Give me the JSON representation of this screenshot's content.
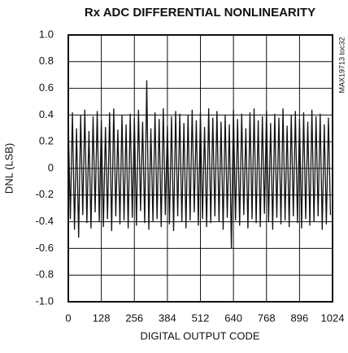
{
  "chart_data": {
    "type": "line",
    "title": "Rx ADC DIFFERENTIAL NONLINEARITY",
    "x_label": "DIGITAL OUTPUT CODE",
    "y_label": "DNL (LSB)",
    "note": "MAX19713 toc32",
    "color": "#111111",
    "grid": true,
    "xlim": [
      0,
      1024
    ],
    "xticks": [
      0,
      128,
      256,
      384,
      512,
      640,
      768,
      896,
      1024
    ],
    "ylim": [
      -1,
      1
    ],
    "yticks": [
      {
        "value": -1,
        "label": "-1.0"
      },
      -0.8,
      -0.6,
      -0.4,
      -0.2,
      0,
      0.2,
      0.4,
      0.6,
      0.8,
      {
        "value": 1,
        "label": "1.0"
      }
    ],
    "x": [
      0,
      8,
      16,
      24,
      32,
      40,
      48,
      56,
      64,
      72,
      80,
      88,
      96,
      104,
      112,
      120,
      128,
      136,
      144,
      152,
      160,
      168,
      176,
      184,
      192,
      200,
      208,
      216,
      224,
      232,
      240,
      248,
      256,
      264,
      272,
      280,
      288,
      296,
      304,
      312,
      320,
      328,
      336,
      344,
      352,
      360,
      368,
      376,
      384,
      392,
      400,
      408,
      416,
      424,
      432,
      440,
      448,
      456,
      464,
      472,
      480,
      488,
      496,
      504,
      512,
      520,
      528,
      536,
      544,
      552,
      560,
      568,
      576,
      584,
      592,
      600,
      608,
      616,
      624,
      632,
      640,
      648,
      656,
      664,
      672,
      680,
      688,
      696,
      704,
      712,
      720,
      728,
      736,
      744,
      752,
      760,
      768,
      776,
      784,
      792,
      800,
      808,
      816,
      824,
      832,
      840,
      848,
      856,
      864,
      872,
      880,
      888,
      896,
      904,
      912,
      920,
      928,
      936,
      944,
      952,
      960,
      968,
      976,
      984,
      992,
      1000,
      1008,
      1016
    ],
    "values": [
      0.35,
      -0.38,
      0.42,
      -0.46,
      0.3,
      -0.52,
      0.4,
      -0.35,
      0.44,
      -0.41,
      0.28,
      -0.45,
      0.39,
      -0.33,
      0.43,
      -0.4,
      0.36,
      -0.44,
      0.31,
      -0.38,
      0.42,
      -0.47,
      0.45,
      -0.36,
      0.29,
      -0.42,
      0.4,
      -0.39,
      0.33,
      -0.45,
      0.41,
      -0.37,
      0.38,
      -0.43,
      0.44,
      -0.32,
      0.35,
      -0.41,
      0.66,
      -0.46,
      0.3,
      -0.4,
      0.42,
      -0.38,
      0.37,
      -0.44,
      0.45,
      -0.35,
      0.32,
      -0.42,
      0.39,
      -0.47,
      0.43,
      -0.36,
      0.41,
      -0.4,
      0.34,
      -0.45,
      0.4,
      -0.39,
      0.44,
      -0.33,
      0.36,
      -0.43,
      0.42,
      -0.38,
      0.31,
      -0.44,
      0.45,
      -0.41,
      0.38,
      -0.36,
      0.43,
      -0.4,
      0.35,
      -0.46,
      0.4,
      -0.37,
      0.33,
      -0.6,
      0.44,
      -0.39,
      0.37,
      -0.43,
      0.41,
      -0.35,
      0.3,
      -0.45,
      0.42,
      -0.38,
      0.45,
      -0.41,
      0.36,
      -0.44,
      0.39,
      -0.34,
      0.43,
      -0.4,
      0.34,
      -0.46,
      0.41,
      -0.37,
      0.38,
      -0.42,
      0.45,
      -0.39,
      0.32,
      -0.44,
      0.4,
      -0.36,
      0.43,
      -0.41,
      0.37,
      -0.45,
      0.42,
      -0.38,
      0.35,
      -0.43,
      0.44,
      -0.4,
      0.39,
      -0.36,
      0.41,
      -0.46,
      0.33,
      -0.42,
      0.38,
      -0.35
    ]
  }
}
